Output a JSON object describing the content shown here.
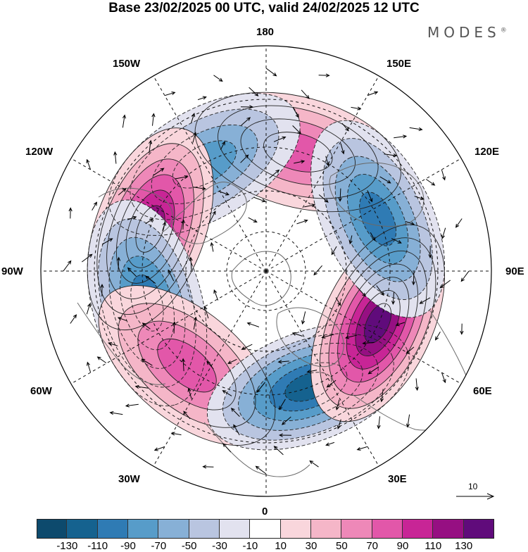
{
  "header": {
    "title": "Base 23/02/2025 00 UTC, valid 24/02/2025 12 UTC",
    "brand": "MODES",
    "brand_mark": "®"
  },
  "map": {
    "projection": "north polar stereographic",
    "lon_labels": {
      "top": "180",
      "bottom": "0",
      "left": "90W",
      "right": "90E",
      "nw1": "150W",
      "nw2": "120W",
      "ne1": "150E",
      "ne2": "120E",
      "sw1": "60W",
      "sw2": "30W",
      "se1": "60E",
      "se2": "30E"
    },
    "anomaly_centers": [
      {
        "name": "NE Pacific high",
        "sign": "positive",
        "lon_deg": 165,
        "value": 70
      },
      {
        "name": "Alaska low",
        "sign": "negative",
        "lon_deg": -150,
        "value": -70
      },
      {
        "name": "Canada high",
        "sign": "positive",
        "lon_deg": -110,
        "value": 110
      },
      {
        "name": "Atlantic low",
        "sign": "negative",
        "lon_deg": -75,
        "value": -90
      },
      {
        "name": "N Atlantic high",
        "sign": "positive",
        "lon_deg": -40,
        "value": 70
      },
      {
        "name": "Scandinavia low",
        "sign": "negative",
        "lon_deg": 20,
        "value": -110
      },
      {
        "name": "Siberia high",
        "sign": "positive",
        "lon_deg": 65,
        "value": 130
      },
      {
        "name": "E Asia low",
        "sign": "negative",
        "lon_deg": 115,
        "value": -90
      }
    ],
    "colors": {
      "land_outline": "#6a6a6a",
      "grid": "#111111"
    }
  },
  "legend": {
    "colors": [
      "#0d4a6d",
      "#15628f",
      "#2f7bb4",
      "#579cc9",
      "#87b0d6",
      "#b9c5e0",
      "#e2e2ef",
      "#ffffff",
      "#f9d6dc",
      "#f5b6c8",
      "#ee88b8",
      "#e257a9",
      "#c82596",
      "#960f82",
      "#600b7b"
    ],
    "ticks": [
      "-130",
      "-110",
      "-90",
      "-70",
      "-50",
      "-30",
      "-10",
      "10",
      "30",
      "50",
      "70",
      "90",
      "110",
      "130"
    ]
  },
  "reference_vector": {
    "label": "10"
  }
}
